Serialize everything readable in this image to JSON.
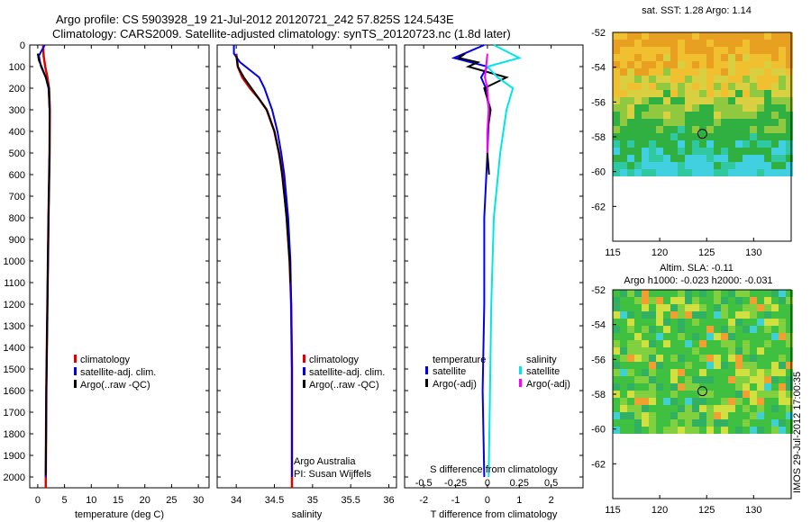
{
  "header": {
    "line1": "Argo profile: CS 5903928_19 21-Jul-2012 20120721_242 57.825S 124.543E",
    "line2": "Climatology: CARS2009. Satellite-adjusted climatology: synTS_20120723.nc (1.8d later)"
  },
  "depth_ticks": [
    "0",
    "100",
    "200",
    "300",
    "400",
    "500",
    "600",
    "700",
    "800",
    "900",
    "1000",
    "1100",
    "1200",
    "1300",
    "1400",
    "1500",
    "1600",
    "1700",
    "1800",
    "1900",
    "2000"
  ],
  "colors": {
    "climatology": "#e00000",
    "satellite": "#0000e6",
    "argo": "#000000",
    "sal_sat": "#00e6e6",
    "sal_argo": "#ff00ff"
  },
  "chart_data": [
    {
      "type": "line",
      "xlabel": "temperature (deg C)",
      "xlim": [
        -1.5,
        32
      ],
      "ylim": [
        0,
        2050
      ],
      "x_ticks": [
        "0",
        "5",
        "10",
        "15",
        "20",
        "25",
        "30"
      ],
      "legend": [
        "climatology",
        "satellite-adj. clim.",
        "Argo(..raw -QC)"
      ],
      "series": [
        {
          "name": "climatology",
          "depth": [
            0,
            50,
            100,
            150,
            200,
            300,
            500,
            800,
            1200,
            1600,
            2000,
            2050
          ],
          "values": [
            1.0,
            1.1,
            1.4,
            1.8,
            2.1,
            2.25,
            2.2,
            2.0,
            1.8,
            1.6,
            1.5,
            1.5
          ]
        },
        {
          "name": "satellite-adj. clim.",
          "depth": [
            0,
            50,
            100,
            150,
            200,
            300,
            500,
            800,
            1200,
            1600,
            2000
          ],
          "values": [
            1.3,
            0.2,
            0.6,
            1.5,
            2.0,
            2.2,
            2.2,
            2.0,
            1.8,
            1.6,
            1.5
          ]
        },
        {
          "name": "Argo(..raw -QC)",
          "depth": [
            40,
            70,
            100,
            150,
            200,
            300,
            500,
            800,
            1200,
            1600,
            1990
          ],
          "values": [
            0.0,
            0.2,
            0.7,
            1.5,
            2.1,
            2.2,
            2.2,
            2.0,
            1.8,
            1.6,
            1.5
          ]
        }
      ]
    },
    {
      "type": "line",
      "xlabel": "salinity",
      "xlim": [
        33.75,
        36.1
      ],
      "ylim": [
        0,
        2050
      ],
      "x_ticks": [
        "34",
        "34.5",
        "35",
        "35.5",
        "36"
      ],
      "legend": [
        "climatology",
        "satellite-adj. clim.",
        "Argo(..raw -QC)"
      ],
      "annotation": [
        "Argo Australia",
        "PI: Susan Wijffels"
      ],
      "series": [
        {
          "name": "climatology",
          "depth": [
            40,
            100,
            150,
            200,
            250,
            300,
            400,
            500,
            600,
            800,
            1000,
            1200,
            1500,
            2050
          ],
          "values": [
            34.0,
            34.02,
            34.08,
            34.18,
            34.3,
            34.4,
            34.5,
            34.56,
            34.61,
            34.66,
            34.7,
            34.72,
            34.73,
            34.73
          ]
        },
        {
          "name": "satellite-adj. clim.",
          "depth": [
            0,
            40,
            80,
            150,
            200,
            250,
            300,
            400,
            500,
            600,
            800,
            1000,
            1200,
            1500,
            2000
          ],
          "values": [
            33.97,
            33.97,
            34.05,
            34.3,
            34.37,
            34.42,
            34.47,
            34.54,
            34.59,
            34.63,
            34.68,
            34.71,
            34.72,
            34.73,
            34.73
          ]
        },
        {
          "name": "Argo(..raw -QC)",
          "depth": [
            50,
            100,
            150,
            200,
            250,
            300,
            400,
            500,
            600,
            800,
            1000,
            1100
          ],
          "values": [
            34.0,
            34.02,
            34.1,
            34.2,
            34.3,
            34.4,
            34.5,
            34.56,
            34.6,
            34.66,
            34.7,
            34.71
          ]
        }
      ]
    },
    {
      "type": "line",
      "xlabel": "T difference from climatology",
      "xlabel_top": "S difference from climatology",
      "xlim": [
        -2.6,
        3.0
      ],
      "ylim": [
        0,
        2050
      ],
      "x_ticks": [
        "-2",
        "-1",
        "0",
        "1",
        "2"
      ],
      "x_ticks_top": [
        "-0.5",
        "-0.25",
        "0",
        "0.25",
        "0.5"
      ],
      "legend_groups": [
        {
          "title": "temperature",
          "items": [
            "satellite",
            "Argo(-adj)"
          ]
        },
        {
          "title": "salinity",
          "items": [
            "satellite",
            "Argo(-adj)"
          ]
        }
      ],
      "series": [
        {
          "name": "temperature satellite",
          "depth": [
            0,
            60,
            100,
            150,
            200,
            300,
            500,
            800,
            1200,
            1600,
            2000
          ],
          "values": [
            -0.1,
            -1.05,
            0.0,
            -0.2,
            -0.05,
            0.05,
            0.0,
            -0.1,
            -0.1,
            -0.15,
            -0.1
          ]
        },
        {
          "name": "temperature Argo(-adj)",
          "depth": [
            40,
            60,
            80,
            100,
            150,
            200,
            300,
            400,
            500,
            600
          ],
          "values": [
            -0.7,
            -0.9,
            -0.3,
            -0.6,
            0.6,
            -0.1,
            0.1,
            0.0,
            0.0,
            0.05
          ]
        },
        {
          "name": "salinity satellite",
          "depth": [
            0,
            60,
            100,
            150,
            200,
            300,
            500,
            800,
            1200,
            1600,
            2000
          ],
          "values": [
            0.05,
            0.25,
            0.0,
            0.08,
            0.2,
            0.15,
            0.1,
            0.05,
            0.03,
            0.02,
            0.01
          ]
        },
        {
          "name": "salinity Argo(-adj)",
          "depth": [
            40,
            100,
            150,
            200,
            300,
            400,
            500
          ],
          "values": [
            0.0,
            -0.01,
            -0.02,
            0.0,
            0.01,
            0.0,
            0.0
          ]
        }
      ]
    }
  ],
  "maps": [
    {
      "title": "sat. SST: 1.28 Argo: 1.14",
      "subtitle": "",
      "lon_ticks": [
        "115",
        "120",
        "125",
        "130"
      ],
      "lat_ticks": [
        "-52",
        "-54",
        "-56",
        "-58",
        "-60",
        "-62"
      ]
    },
    {
      "title": "Altim. SLA: -0.11",
      "subtitle": "Argo h1000: -0.023 h2000: -0.031",
      "lon_ticks": [
        "115",
        "120",
        "125",
        "130"
      ],
      "lat_ticks": [
        "-52",
        "-54",
        "-56",
        "-58",
        "-60",
        "-62"
      ]
    }
  ],
  "footer_vertical": "IMOS 29-Jul-2012 17:00:35"
}
